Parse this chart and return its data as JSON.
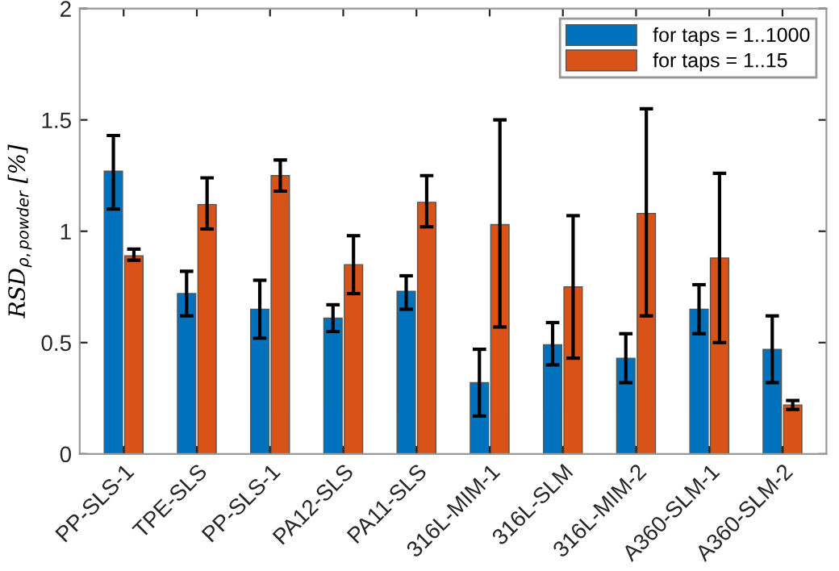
{
  "chart_data": {
    "type": "bar",
    "ylabel": "RSD$_{ρ,powder}$ [%]",
    "categories": [
      "PP-SLS-1",
      "TPE-SLS",
      "PP-SLS-1",
      "PA12-SLS",
      "PA11-SLS",
      "316L-MIM-1",
      "316L-SLM",
      "316L-MIM-2",
      "A360-SLM-1",
      "A360-SLM-2"
    ],
    "series": [
      {
        "name": "for taps = 1..1000",
        "color": "#0072bd",
        "values": [
          1.27,
          0.72,
          0.65,
          0.61,
          0.73,
          0.32,
          0.49,
          0.43,
          0.65,
          0.47
        ],
        "errors": [
          [
            1.1,
            1.43
          ],
          [
            0.62,
            0.82
          ],
          [
            0.52,
            0.78
          ],
          [
            0.55,
            0.67
          ],
          [
            0.65,
            0.8
          ],
          [
            0.17,
            0.47
          ],
          [
            0.4,
            0.59
          ],
          [
            0.32,
            0.54
          ],
          [
            0.54,
            0.76
          ],
          [
            0.32,
            0.62
          ]
        ]
      },
      {
        "name": "for taps = 1..15",
        "color": "#d95319",
        "values": [
          0.89,
          1.12,
          1.25,
          0.85,
          1.13,
          1.03,
          0.75,
          1.08,
          0.88,
          0.22
        ],
        "errors": [
          [
            0.87,
            0.92
          ],
          [
            1.01,
            1.24
          ],
          [
            1.18,
            1.32
          ],
          [
            0.72,
            0.98
          ],
          [
            1.02,
            1.25
          ],
          [
            0.57,
            1.5
          ],
          [
            0.43,
            1.07
          ],
          [
            0.62,
            1.55
          ],
          [
            0.5,
            1.26
          ],
          [
            0.2,
            0.24
          ]
        ]
      }
    ],
    "ylim": [
      0,
      2
    ],
    "yticks": [
      0,
      0.5,
      1,
      1.5,
      2
    ],
    "grid": false,
    "legend": "top right"
  }
}
